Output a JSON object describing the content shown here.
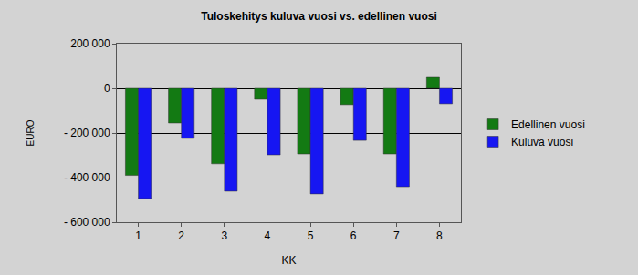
{
  "chart_data": {
    "type": "bar",
    "title": "Tuloskehitys kuluva vuosi vs. edellinen vuosi",
    "x_label": "KK",
    "y_label": "EURO",
    "categories": [
      1,
      2,
      3,
      4,
      5,
      6,
      7,
      8
    ],
    "series": [
      {
        "name": "Edellinen vuosi",
        "color": "#137a13",
        "values": [
          -390000,
          -155000,
          -338000,
          -49000,
          -294000,
          -73000,
          -294000,
          49000
        ]
      },
      {
        "name": "Kuluva vuosi",
        "color": "#1616f2",
        "values": [
          -494000,
          -224000,
          -461000,
          -298000,
          -473000,
          -233000,
          -441000,
          -69000
        ]
      }
    ],
    "ylim": [
      -600000,
      200000
    ],
    "yticks": [
      {
        "value": -600000,
        "label": "- 600 000"
      },
      {
        "value": -400000,
        "label": "- 400 000"
      },
      {
        "value": -200000,
        "label": "- 200 000"
      },
      0,
      {
        "value": 200000,
        "label": "200 000"
      }
    ],
    "grid": true,
    "legend": "right"
  }
}
